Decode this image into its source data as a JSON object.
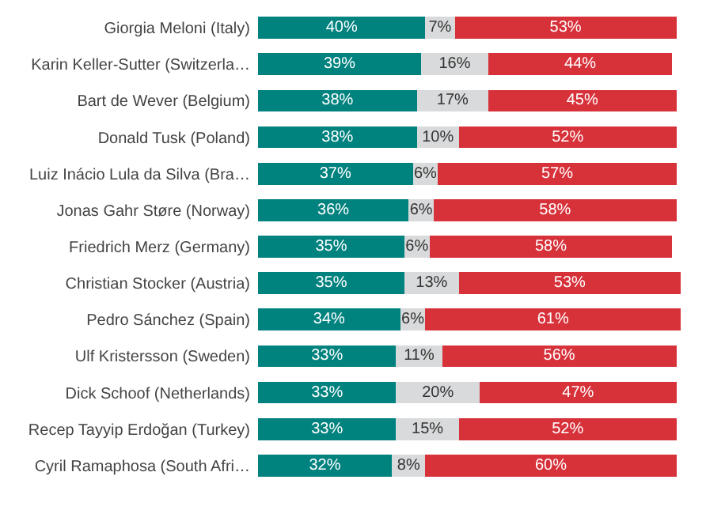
{
  "chart_data": {
    "type": "bar",
    "orientation": "horizontal",
    "stacked": true,
    "xlim": [
      0,
      101
    ],
    "tick_labels": "y",
    "categories": [
      "Giorgia Meloni (Italy)",
      "Karin Keller-Sutter (Switzerla…",
      "Bart de Wever (Belgium)",
      "Donald Tusk (Poland)",
      "Luiz Inácio Lula da Silva (Bra…",
      "Jonas Gahr Støre (Norway)",
      "Friedrich Merz (Germany)",
      "Christian Stocker (Austria)",
      "Pedro Sánchez (Spain)",
      "Ulf Kristersson (Sweden)",
      "Dick Schoof (Netherlands)",
      "Recep Tayyip Erdoğan (Turkey)",
      "Cyril Ramaphosa (South Afri…"
    ],
    "series": [
      {
        "color": "#00827f",
        "values": [
          40,
          39,
          38,
          38,
          37,
          36,
          35,
          35,
          34,
          33,
          33,
          33,
          32
        ],
        "value_labels": [
          "40%",
          "39%",
          "38%",
          "38%",
          "37%",
          "36%",
          "35%",
          "35%",
          "34%",
          "33%",
          "33%",
          "33%",
          "32%"
        ]
      },
      {
        "color": "#d9dadb",
        "values": [
          7,
          16,
          17,
          10,
          6,
          6,
          6,
          13,
          6,
          11,
          20,
          15,
          8
        ],
        "value_labels": [
          "7%",
          "16%",
          "17%",
          "10%",
          "6%",
          "6%",
          "6%",
          "13%",
          "6%",
          "11%",
          "20%",
          "15%",
          "8%"
        ]
      },
      {
        "color": "#d7313a",
        "values": [
          53,
          44,
          45,
          52,
          57,
          58,
          58,
          53,
          61,
          56,
          47,
          52,
          60
        ],
        "value_labels": [
          "53%",
          "44%",
          "45%",
          "52%",
          "57%",
          "58%",
          "58%",
          "53%",
          "61%",
          "56%",
          "47%",
          "52%",
          "60%"
        ]
      }
    ]
  }
}
